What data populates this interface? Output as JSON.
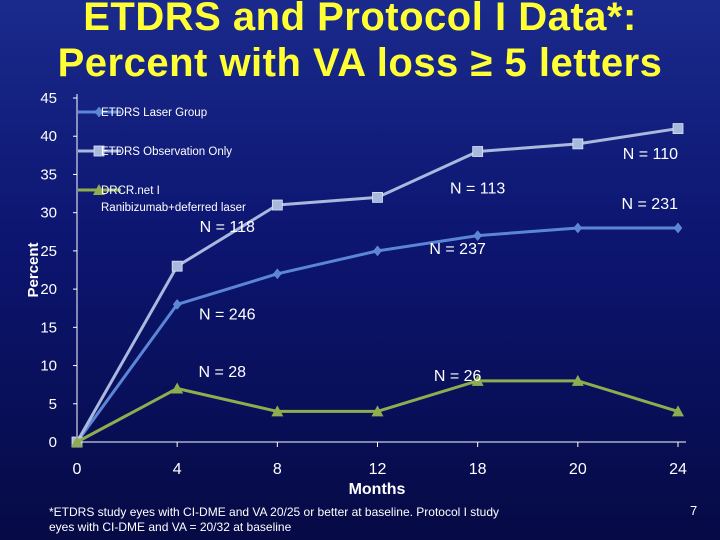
{
  "slide": {
    "title_line1": "ETDRS and Protocol I Data*:",
    "title_line2": "Percent with VA loss ≥ 5 letters",
    "footnote_line1": "*ETDRS study eyes with CI-DME and VA 20/25 or better at baseline. Protocol I study",
    "footnote_line2": "eyes with CI-DME and VA = 20/32 at baseline",
    "slide_number": "7"
  },
  "colors": {
    "title": "#ffff33",
    "laser": "#5b86d6",
    "observation": "#a9b9de",
    "drcr": "#8fad4f",
    "text": "#ffffff",
    "legend_text": "#ffffff"
  },
  "chart_data": {
    "type": "line",
    "xlabel": "Months",
    "ylabel": "Percent",
    "x": [
      0,
      4,
      8,
      12,
      18,
      20,
      24
    ],
    "x_tick_labels": [
      "0",
      "4",
      "8",
      "12",
      "18",
      "20",
      "24"
    ],
    "ylim": [
      0,
      45
    ],
    "y_ticks": [
      0,
      5,
      10,
      15,
      20,
      25,
      30,
      35,
      40,
      45
    ],
    "grid": false,
    "legend_position": "top-left",
    "series": [
      {
        "name": "ETDRS Laser Group",
        "values": [
          0,
          18,
          22,
          25,
          27,
          28,
          28
        ],
        "marker": "diamond",
        "color": "#5b86d6"
      },
      {
        "name": "ETDRS Observation Only",
        "values": [
          0,
          23,
          31,
          32,
          38,
          39,
          41
        ],
        "marker": "square",
        "color": "#a9b9de"
      },
      {
        "name": "DRCR.net I Ranibizumab+deferred laser",
        "values": [
          0,
          7,
          4,
          4,
          8,
          8,
          4
        ],
        "marker": "triangle",
        "color": "#8fad4f"
      }
    ],
    "annotations": [
      {
        "text": "N = 110",
        "x": 24,
        "y": 37
      },
      {
        "text": "N = 231",
        "x": 24,
        "y": 30.5
      },
      {
        "text": "N = 113",
        "x": 16,
        "y": 32.5
      },
      {
        "text": "N = 118",
        "x": 6,
        "y": 27.5
      },
      {
        "text": "N = 237",
        "x": 15.2,
        "y": 24.6
      },
      {
        "text": "N = 246",
        "x": 6,
        "y": 16
      },
      {
        "text": "N = 28",
        "x": 5.8,
        "y": 8.5
      },
      {
        "text": "N = 26",
        "x": 15.2,
        "y": 8
      }
    ]
  }
}
